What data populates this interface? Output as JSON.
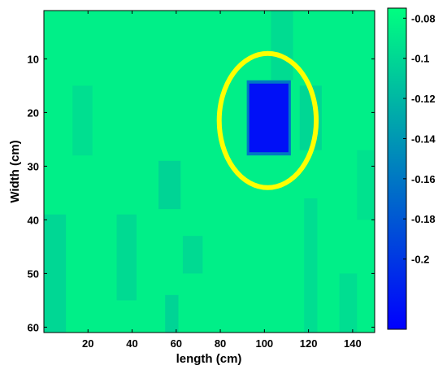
{
  "chart_data": {
    "type": "heatmap",
    "xlabel": "length (cm)",
    "ylabel": "Width (cm)",
    "xlim": [
      0,
      150
    ],
    "ylim": [
      61,
      1
    ],
    "y_reversed": true,
    "x_ticks": [
      "20",
      "40",
      "60",
      "80",
      "100",
      "120",
      "140"
    ],
    "y_ticks": [
      "10",
      "20",
      "30",
      "40",
      "50",
      "60"
    ],
    "colorbar": {
      "range": [
        -0.235,
        -0.075
      ],
      "ticks": [
        "-0.08",
        "-0.1",
        "-0.12",
        "-0.14",
        "-0.16",
        "-0.18",
        "-0.2"
      ],
      "colormap": [
        "#0000ff",
        "#00ff80"
      ]
    },
    "background_value": -0.085,
    "bands": [
      {
        "x": [
          0,
          10
        ],
        "y": [
          39,
          61
        ],
        "value": -0.1
      },
      {
        "x": [
          13,
          22
        ],
        "y": [
          15,
          28
        ],
        "value": -0.095
      },
      {
        "x": [
          33,
          42
        ],
        "y": [
          39,
          55
        ],
        "value": -0.098
      },
      {
        "x": [
          52,
          62
        ],
        "y": [
          29,
          38
        ],
        "value": -0.102
      },
      {
        "x": [
          55,
          61
        ],
        "y": [
          54,
          61
        ],
        "value": -0.102
      },
      {
        "x": [
          63,
          72
        ],
        "y": [
          43,
          50
        ],
        "value": -0.098
      },
      {
        "x": [
          103,
          113
        ],
        "y": [
          1,
          14
        ],
        "value": -0.097
      },
      {
        "x": [
          116,
          126
        ],
        "y": [
          15,
          27
        ],
        "value": -0.1
      },
      {
        "x": [
          118,
          124
        ],
        "y": [
          36,
          61
        ],
        "value": -0.096
      },
      {
        "x": [
          134,
          142
        ],
        "y": [
          50,
          61
        ],
        "value": -0.096
      },
      {
        "x": [
          142,
          150
        ],
        "y": [
          27,
          40
        ],
        "value": -0.093
      }
    ],
    "anomaly": {
      "x": [
        92,
        112
      ],
      "y": [
        14,
        28
      ],
      "value": -0.225
    },
    "highlight": {
      "type": "ellipse",
      "center": [
        101.5,
        21.5
      ],
      "radius": [
        22,
        12.5
      ],
      "color": "#ffff00"
    }
  }
}
